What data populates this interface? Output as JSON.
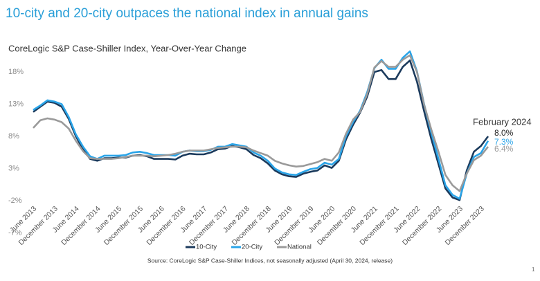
{
  "chart_data": {
    "type": "line",
    "title": "10-city and 20-city outpaces the national index in annual gains",
    "subtitle": "CoreLogic S&P Case-Shiller Index, Year-Over-Year Change",
    "annotation": "February 2024",
    "source": "Source: CoreLogic  S&P Case-Shiller Indices, not seasonally adjusted (April 30, 2024, release)",
    "page_number": "1",
    "categories": [
      "June 2013",
      null,
      null,
      "December 2013",
      null,
      null,
      "June 2014",
      null,
      null,
      "December 2014",
      null,
      null,
      "June 2015",
      null,
      null,
      "December 2015",
      null,
      null,
      "June 2016",
      null,
      null,
      "December 2016",
      null,
      null,
      "June 2017",
      null,
      null,
      "December 2017",
      null,
      null,
      "June 2018",
      null,
      null,
      "December 2018",
      null,
      null,
      "June 2019",
      null,
      null,
      "December 2019",
      null,
      null,
      "June 2020",
      null,
      null,
      "December 2020",
      null,
      null,
      "June 2021",
      null,
      null,
      "December 2021",
      null,
      null,
      "June 2022",
      null,
      null,
      "December 2022",
      null,
      null,
      "June 2023",
      null,
      null,
      "December 2023",
      null
    ],
    "series": [
      {
        "name": "10-City",
        "color": "#1b3a5c",
        "values": [
          11.8,
          12.6,
          13.4,
          13.2,
          12.6,
          10.7,
          8.0,
          6.0,
          4.5,
          4.2,
          4.6,
          4.6,
          4.7,
          4.7,
          5.0,
          5.1,
          4.9,
          4.5,
          4.5,
          4.5,
          4.4,
          5.0,
          5.3,
          5.2,
          5.2,
          5.5,
          6.0,
          6.1,
          6.5,
          6.3,
          6.0,
          5.1,
          4.6,
          3.8,
          2.7,
          2.1,
          1.8,
          1.7,
          2.2,
          2.5,
          2.7,
          3.5,
          3.1,
          4.2,
          7.5,
          9.8,
          11.7,
          14.2,
          18.0,
          18.3,
          16.9,
          16.9,
          18.8,
          19.8,
          16.5,
          11.9,
          7.6,
          3.8,
          -0.1,
          -1.5,
          -1.9,
          2.7,
          5.6,
          6.5,
          8.0
        ],
        "value_labels": [
          null,
          null,
          null,
          null,
          null,
          null,
          null,
          null,
          null,
          null,
          null,
          null,
          null,
          null,
          null,
          null,
          null,
          null,
          null,
          null,
          null,
          null,
          null,
          null,
          null,
          null,
          null,
          null,
          null,
          null,
          null,
          null,
          null,
          null,
          null,
          null,
          null,
          null,
          null,
          null,
          null,
          null,
          null,
          null,
          null,
          null,
          null,
          null,
          null,
          null,
          null,
          null,
          null,
          null,
          null,
          null,
          null,
          null,
          null,
          null,
          null,
          null,
          null,
          null,
          "8.0%"
        ]
      },
      {
        "name": "20-City",
        "color": "#2aa4e8",
        "values": [
          12.1,
          12.8,
          13.6,
          13.4,
          13.0,
          11.0,
          8.3,
          6.4,
          4.9,
          4.5,
          5.0,
          5.0,
          5.0,
          5.1,
          5.5,
          5.6,
          5.4,
          5.1,
          5.1,
          5.1,
          5.0,
          5.6,
          5.8,
          5.7,
          5.7,
          5.9,
          6.4,
          6.4,
          6.8,
          6.6,
          6.4,
          5.5,
          5.0,
          4.2,
          3.0,
          2.4,
          2.1,
          2.0,
          2.5,
          2.9,
          3.1,
          3.9,
          3.6,
          4.5,
          8.0,
          10.2,
          12.0,
          14.9,
          18.6,
          19.9,
          18.5,
          18.5,
          20.2,
          21.2,
          18.1,
          13.0,
          8.6,
          4.6,
          0.4,
          -1.1,
          -1.7,
          2.2,
          4.8,
          5.4,
          7.3
        ],
        "value_labels": [
          null,
          null,
          null,
          null,
          null,
          null,
          null,
          null,
          null,
          null,
          null,
          null,
          null,
          null,
          null,
          null,
          null,
          null,
          null,
          null,
          null,
          null,
          null,
          null,
          null,
          null,
          null,
          null,
          null,
          null,
          null,
          null,
          null,
          null,
          null,
          null,
          null,
          null,
          null,
          null,
          null,
          null,
          null,
          null,
          null,
          null,
          null,
          null,
          null,
          null,
          null,
          null,
          null,
          null,
          null,
          null,
          null,
          null,
          null,
          null,
          null,
          null,
          null,
          null,
          "7.3%"
        ]
      },
      {
        "name": "National",
        "color": "#9a9a9a",
        "values": [
          9.3,
          10.5,
          10.8,
          10.6,
          10.2,
          9.2,
          7.3,
          5.7,
          4.6,
          4.5,
          4.5,
          4.5,
          4.6,
          4.8,
          5.0,
          5.0,
          5.0,
          4.9,
          5.0,
          5.1,
          5.3,
          5.6,
          5.8,
          5.8,
          5.8,
          6.0,
          6.2,
          6.3,
          6.4,
          6.4,
          6.3,
          5.8,
          5.4,
          5.0,
          4.2,
          3.8,
          3.5,
          3.3,
          3.4,
          3.7,
          4.0,
          4.5,
          4.2,
          5.5,
          8.4,
          10.6,
          11.8,
          14.6,
          18.7,
          19.7,
          18.8,
          18.8,
          19.9,
          20.6,
          18.0,
          12.9,
          9.1,
          5.7,
          2.0,
          0.4,
          -0.5,
          2.2,
          4.3,
          5.0,
          6.4
        ],
        "value_labels": [
          null,
          null,
          null,
          null,
          null,
          null,
          null,
          null,
          null,
          null,
          null,
          null,
          null,
          null,
          null,
          null,
          null,
          null,
          null,
          null,
          null,
          null,
          null,
          null,
          null,
          null,
          null,
          null,
          null,
          null,
          null,
          null,
          null,
          null,
          null,
          null,
          null,
          null,
          null,
          null,
          null,
          null,
          null,
          null,
          null,
          null,
          null,
          null,
          null,
          null,
          null,
          null,
          null,
          null,
          null,
          null,
          null,
          null,
          null,
          null,
          null,
          null,
          null,
          null,
          "6.4%"
        ]
      }
    ],
    "ylim": [
      -7,
      22
    ],
    "yticks": [
      {
        "value": -7,
        "label": "-7%"
      },
      {
        "value": -2,
        "label": "-2%"
      },
      {
        "value": 3,
        "label": "3%"
      },
      {
        "value": 8,
        "label": "8%"
      },
      {
        "value": 13,
        "label": "13%"
      },
      {
        "value": 18,
        "label": "18%"
      }
    ],
    "grid": false
  }
}
